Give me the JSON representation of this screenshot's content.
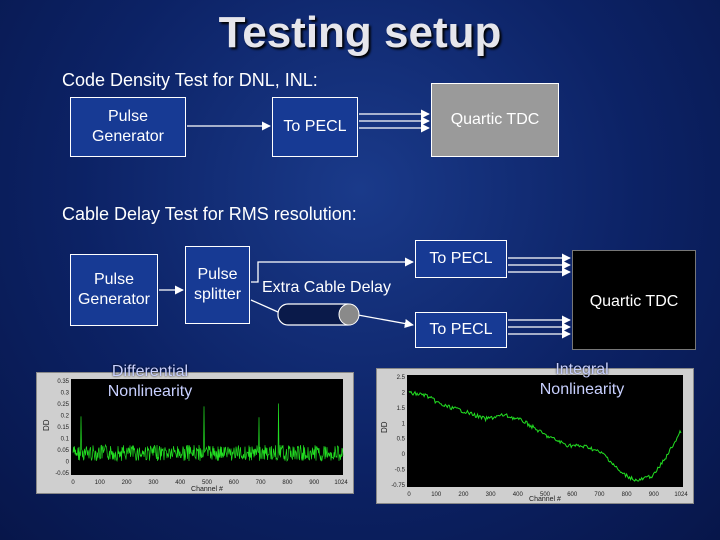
{
  "title": "Testing setup",
  "code_density": {
    "heading": "Code Density Test for DNL, INL:",
    "pulse_generator": [
      "Pulse",
      "Generator"
    ],
    "to_pecl": "To PECL",
    "quartic_tdc": "Quartic TDC"
  },
  "cable_delay": {
    "heading": "Cable Delay Test for RMS resolution:",
    "pulse_generator": [
      "Pulse",
      "Generator"
    ],
    "pulse_splitter": [
      "Pulse",
      "splitter"
    ],
    "extra_cable_delay": "Extra Cable Delay",
    "to_pecl_top": "To PECL",
    "to_pecl_bottom": "To PECL",
    "quartic_tdc": "Quartic TDC"
  },
  "plots": {
    "dnl": {
      "label": [
        "Differential",
        "Nonlinearity"
      ],
      "ylabel": "DD",
      "xlabel": "Channel #",
      "yticks": [
        "0.35",
        "0.3",
        "0.25",
        "0.2",
        "0.15",
        "0.1",
        "0.05",
        "0",
        "-0.05"
      ],
      "xticks": [
        "0",
        "100",
        "200",
        "300",
        "400",
        "500",
        "600",
        "700",
        "800",
        "900",
        "1024"
      ]
    },
    "inl": {
      "label": [
        "Integral",
        "Nonlinearity"
      ],
      "ylabel": "DD",
      "xlabel": "Channel #",
      "yticks": [
        "2.5",
        "2",
        "1.5",
        "1",
        "0.5",
        "0",
        "-0.5",
        "-0.75"
      ],
      "xticks": [
        "0",
        "100",
        "200",
        "300",
        "400",
        "500",
        "600",
        "700",
        "800",
        "900",
        "1024"
      ]
    }
  },
  "colors": {
    "background": "#0c2265",
    "box_blue": "#173a94",
    "box_gray": "#9a9a9a",
    "trace": "#22dd22"
  }
}
